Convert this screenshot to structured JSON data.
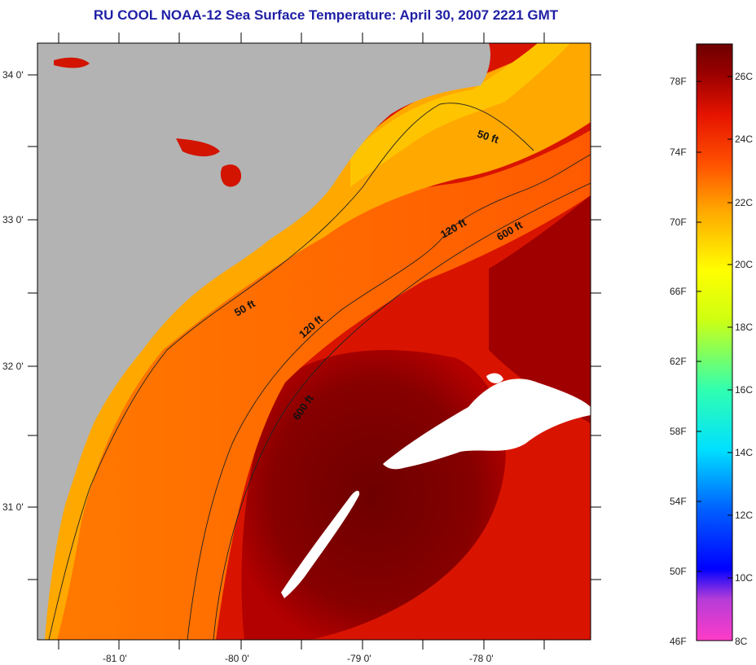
{
  "title": "RU COOL  NOAA-12  Sea Surface Temperature:  April 30, 2007 2221 GMT",
  "colors": {
    "land": "#b3b3b3",
    "cloud": "#ffffff",
    "sst_warm": "#7a0000",
    "sst_mid": "#e62000",
    "sst_cool": "#ff9a00",
    "sst_coastal": "#ffc400",
    "contour": "#222222"
  },
  "map": {
    "lat_labels": [
      "34 0'",
      "33 0'",
      "32 0'",
      "31 0'"
    ],
    "lon_labels": [
      "-81 0'",
      "-80 0'",
      "-79 0'",
      "-78 0'"
    ],
    "contour_labels": [
      "50 ft",
      "120 ft",
      "600 ft",
      "50 ft",
      "120 ft",
      "600 ft"
    ]
  },
  "colorbar": {
    "fahrenheit_labels": [
      "78F",
      "74F",
      "70F",
      "66F",
      "62F",
      "58F",
      "54F",
      "50F",
      "46F"
    ],
    "celsius_labels": [
      "26C",
      "24C",
      "22C",
      "20C",
      "18C",
      "16C",
      "14C",
      "12C",
      "10C",
      "8C"
    ]
  }
}
